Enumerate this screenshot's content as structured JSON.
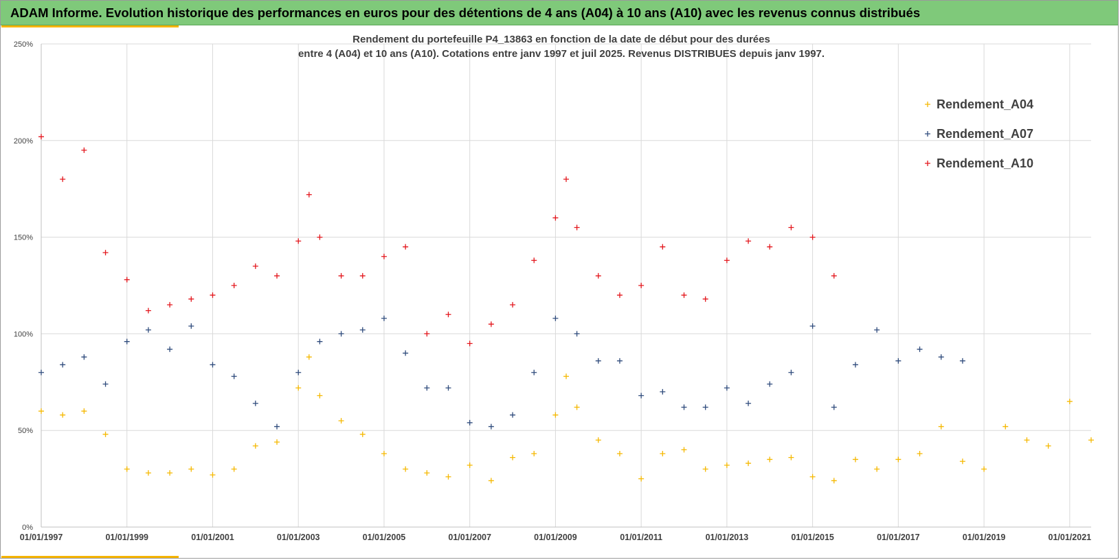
{
  "banner": {
    "title": "ADAM Informe. Evolution historique des performances en euros pour des détentions de 4 ans (A04) à 10 ans (A10) avec les revenus connus distribués"
  },
  "colors": {
    "banner": "#7fc97a",
    "accent": "#f5b400",
    "A04": "#f5b800",
    "A07": "#2f4b7c",
    "A10": "#e3161c",
    "grid": "#d9d9d9"
  },
  "chart_data": {
    "type": "scatter",
    "title_lines": [
      "Rendement du portefeuille P4_13863 en fonction de la date de début pour des durées",
      "entre 4 (A04) et 10 ans (A10). Cotations  entre janv 1997 et juil 2025. Revenus DISTRIBUES  depuis janv 1997."
    ],
    "xlabel": "",
    "ylabel": "",
    "x_tick_labels": [
      "01/01/1997",
      "01/01/1999",
      "01/01/2001",
      "01/01/2003",
      "01/01/2005",
      "01/01/2007",
      "01/01/2009",
      "01/01/2011",
      "01/01/2013",
      "01/01/2015",
      "01/01/2017",
      "01/01/2019",
      "01/01/2021"
    ],
    "x_range": [
      "1997-01-01",
      "2021-07-01"
    ],
    "y_tick_labels": [
      "0%",
      "50%",
      "100%",
      "150%",
      "200%",
      "250%"
    ],
    "y_range": [
      0,
      2.5
    ],
    "y_ticks": [
      0,
      0.5,
      1.0,
      1.5,
      2.0,
      2.5
    ],
    "grid": true,
    "legend_position": "top-right",
    "marker": "+",
    "series": [
      {
        "name": "Rendement_A04",
        "color": "#f5b800",
        "x": [
          "1997-01",
          "1997-07",
          "1998-01",
          "1998-07",
          "1999-01",
          "1999-07",
          "2000-01",
          "2000-07",
          "2001-01",
          "2001-07",
          "2002-01",
          "2002-07",
          "2003-01",
          "2003-04",
          "2003-07",
          "2004-01",
          "2004-07",
          "2005-01",
          "2005-07",
          "2006-01",
          "2006-07",
          "2007-01",
          "2007-07",
          "2008-01",
          "2008-07",
          "2009-01",
          "2009-04",
          "2009-07",
          "2010-01",
          "2010-07",
          "2011-01",
          "2011-07",
          "2012-01",
          "2012-07",
          "2013-01",
          "2013-07",
          "2014-01",
          "2014-07",
          "2015-01",
          "2015-07",
          "2016-01",
          "2016-07",
          "2017-01",
          "2017-07",
          "2018-01",
          "2018-07",
          "2019-01",
          "2019-07",
          "2020-01",
          "2020-07",
          "2021-01",
          "2021-07"
        ],
        "y": [
          0.6,
          0.58,
          0.6,
          0.48,
          0.3,
          0.28,
          0.28,
          0.3,
          0.27,
          0.3,
          0.42,
          0.44,
          0.72,
          0.88,
          0.68,
          0.55,
          0.48,
          0.38,
          0.3,
          0.28,
          0.26,
          0.32,
          0.24,
          0.36,
          0.38,
          0.58,
          0.78,
          0.62,
          0.45,
          0.38,
          0.25,
          0.38,
          0.4,
          0.3,
          0.32,
          0.33,
          0.35,
          0.36,
          0.26,
          0.24,
          0.35,
          0.3,
          0.35,
          0.38,
          0.52,
          0.34,
          0.3,
          0.52,
          0.45,
          0.42,
          0.65,
          0.45
        ]
      },
      {
        "name": "Rendement_A07",
        "color": "#2f4b7c",
        "x": [
          "1997-01",
          "1997-07",
          "1998-01",
          "1998-07",
          "1999-01",
          "1999-07",
          "2000-01",
          "2000-07",
          "2001-01",
          "2001-07",
          "2002-01",
          "2002-07",
          "2003-01",
          "2003-07",
          "2004-01",
          "2004-07",
          "2005-01",
          "2005-07",
          "2006-01",
          "2006-07",
          "2007-01",
          "2007-07",
          "2008-01",
          "2008-07",
          "2009-01",
          "2009-07",
          "2010-01",
          "2010-07",
          "2011-01",
          "2011-07",
          "2012-01",
          "2012-07",
          "2013-01",
          "2013-07",
          "2014-01",
          "2014-07",
          "2015-01",
          "2015-07",
          "2016-01",
          "2016-07",
          "2017-01",
          "2017-07",
          "2018-01",
          "2018-07"
        ],
        "y": [
          0.8,
          0.84,
          0.88,
          0.74,
          0.96,
          1.02,
          0.92,
          1.04,
          0.84,
          0.78,
          0.64,
          0.52,
          0.8,
          0.96,
          1.0,
          1.02,
          1.08,
          0.9,
          0.72,
          0.72,
          0.54,
          0.52,
          0.58,
          0.8,
          1.08,
          1.0,
          0.86,
          0.86,
          0.68,
          0.7,
          0.62,
          0.62,
          0.72,
          0.64,
          0.74,
          0.8,
          1.04,
          0.62,
          0.84,
          1.02,
          0.86,
          0.92,
          0.88,
          0.86
        ]
      },
      {
        "name": "Rendement_A10",
        "color": "#e3161c",
        "x": [
          "1997-01",
          "1997-07",
          "1998-01",
          "1998-07",
          "1999-01",
          "1999-07",
          "2000-01",
          "2000-07",
          "2001-01",
          "2001-07",
          "2002-01",
          "2002-07",
          "2003-01",
          "2003-04",
          "2003-07",
          "2004-01",
          "2004-07",
          "2005-01",
          "2005-07",
          "2006-01",
          "2006-07",
          "2007-01",
          "2007-07",
          "2008-01",
          "2008-07",
          "2009-01",
          "2009-04",
          "2009-07",
          "2010-01",
          "2010-07",
          "2011-01",
          "2011-07",
          "2012-01",
          "2012-07",
          "2013-01",
          "2013-07",
          "2014-01",
          "2014-07",
          "2015-01",
          "2015-07"
        ],
        "y": [
          2.02,
          1.8,
          1.95,
          1.42,
          1.28,
          1.12,
          1.15,
          1.18,
          1.2,
          1.25,
          1.35,
          1.3,
          1.48,
          1.72,
          1.5,
          1.3,
          1.3,
          1.4,
          1.45,
          1.0,
          1.1,
          0.95,
          1.05,
          1.15,
          1.38,
          1.6,
          1.8,
          1.55,
          1.3,
          1.2,
          1.25,
          1.45,
          1.2,
          1.18,
          1.38,
          1.48,
          1.45,
          1.55,
          1.5,
          1.3
        ]
      }
    ]
  }
}
